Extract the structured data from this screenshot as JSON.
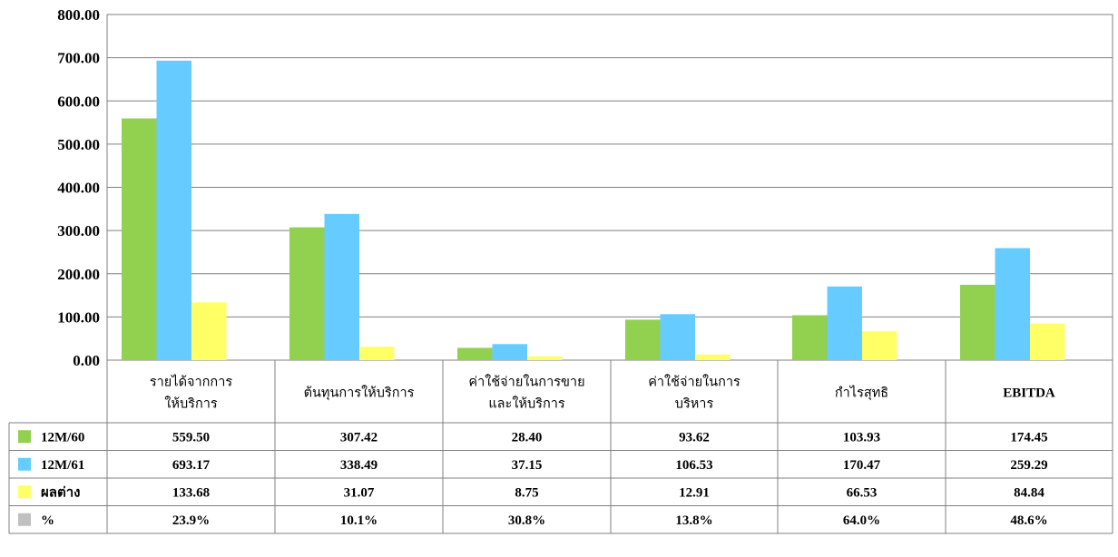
{
  "chart_data": {
    "type": "bar",
    "categories": [
      [
        "รายได้จากการ",
        "ให้บริการ"
      ],
      [
        "ต้นทุนการให้บริการ"
      ],
      [
        "ค่าใช้จ่ายในการขาย",
        "และให้บริการ"
      ],
      [
        "ค่าใช้จ่ายในการ",
        "บริหาร"
      ],
      [
        "กำไรสุทธิ"
      ],
      [
        "EBITDA"
      ]
    ],
    "series": [
      {
        "name": "12M/60",
        "color": "#92d050",
        "values": [
          559.5,
          307.42,
          28.4,
          93.62,
          103.93,
          174.45
        ],
        "labels": [
          "559.50",
          "307.42",
          "28.40",
          "93.62",
          "103.93",
          "174.45"
        ]
      },
      {
        "name": "12M/61",
        "color": "#66ccff",
        "values": [
          693.17,
          338.49,
          37.15,
          106.53,
          170.47,
          259.29
        ],
        "labels": [
          "693.17",
          "338.49",
          "37.15",
          "106.53",
          "170.47",
          "259.29"
        ]
      },
      {
        "name": "ผลต่าง",
        "color": "#ffff66",
        "values": [
          133.68,
          31.07,
          8.75,
          12.91,
          66.53,
          84.84
        ],
        "labels": [
          "133.68",
          "31.07",
          "8.75",
          "12.91",
          "66.53",
          "84.84"
        ]
      }
    ],
    "percent_row": {
      "name": "%",
      "color": "#c0c0c0",
      "labels": [
        "23.9%",
        "10.1%",
        "30.8%",
        "13.8%",
        "64.0%",
        "48.6%"
      ]
    },
    "ylim": [
      0,
      800
    ],
    "yticks": [
      "0.00",
      "100.00",
      "200.00",
      "300.00",
      "400.00",
      "500.00",
      "600.00",
      "700.00",
      "800.00"
    ],
    "grid": true,
    "legend": "data-table"
  }
}
